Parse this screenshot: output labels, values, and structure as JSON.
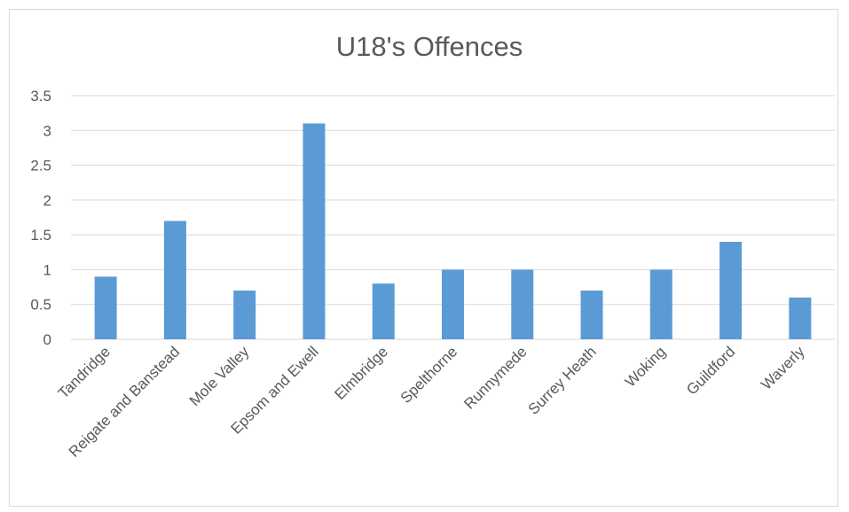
{
  "chart_data": {
    "type": "bar",
    "title": "U18's Offences",
    "xlabel": "",
    "ylabel": "",
    "categories": [
      "Tandridge",
      "Reigate and Banstead",
      "Mole Valley",
      "Epsom and Ewell",
      "Elmbridge",
      "Spelthorne",
      "Runnymede",
      "Surrey Heath",
      "Woking",
      "Guildford",
      "Waverly"
    ],
    "values": [
      0.9,
      1.7,
      0.7,
      3.1,
      0.8,
      1.0,
      1.0,
      0.7,
      1.0,
      1.4,
      0.6
    ],
    "ylim": [
      0,
      3.5
    ],
    "yticks": [
      "0",
      "0.5",
      "1",
      "1.5",
      "2",
      "2.5",
      "3",
      "3.5"
    ],
    "grid": true,
    "legend": "none",
    "bar_color": "#5b9bd5"
  }
}
